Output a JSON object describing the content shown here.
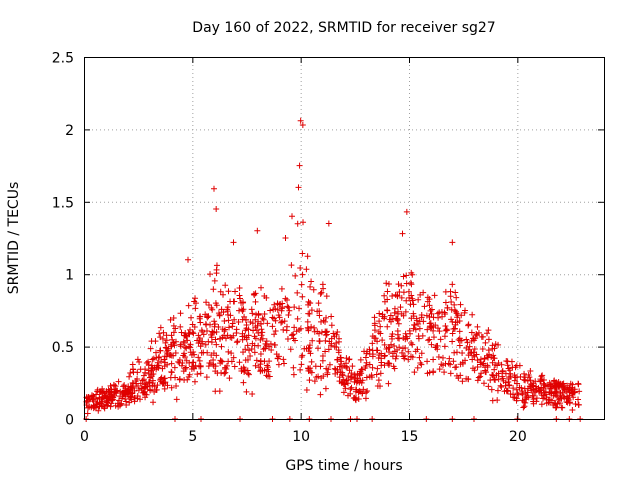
{
  "chart_data": {
    "type": "scatter",
    "title": "Day 160 of 2022, SRMTID for receiver sg27",
    "xlabel": "GPS time / hours",
    "ylabel": "SRMTID / TECUs",
    "xlim": [
      0,
      24
    ],
    "ylim": [
      0,
      2.5
    ],
    "x_ticks": [
      0,
      5,
      10,
      15,
      20
    ],
    "x_tick_labels": [
      "0",
      "5",
      "10",
      "15",
      "20"
    ],
    "y_ticks": [
      0,
      0.5,
      1,
      1.5,
      2,
      2.5
    ],
    "y_tick_labels": [
      "0",
      "0.5",
      "1",
      "1.5",
      "2",
      "2.5"
    ],
    "grid": true,
    "marker": "+",
    "color": "#e00000",
    "series": [
      {
        "name": "SRMTID",
        "envelope_hours": [
          0,
          0.5,
          1,
          1.5,
          2,
          2.5,
          3,
          3.5,
          4,
          4.5,
          5,
          5.5,
          6,
          6.5,
          7,
          7.5,
          8,
          8.5,
          9,
          9.5,
          10,
          10.5,
          11,
          11.5,
          12,
          12.5,
          13,
          13.5,
          14,
          14.5,
          15,
          15.5,
          16,
          16.5,
          17,
          17.5,
          18,
          18.5,
          19,
          19.5,
          20,
          20.5,
          21,
          21.5,
          22,
          22.5,
          23
        ],
        "envelope_median": [
          0.1,
          0.12,
          0.14,
          0.15,
          0.17,
          0.22,
          0.28,
          0.33,
          0.38,
          0.45,
          0.52,
          0.5,
          0.55,
          0.52,
          0.58,
          0.55,
          0.5,
          0.52,
          0.56,
          0.6,
          0.65,
          0.58,
          0.5,
          0.42,
          0.3,
          0.2,
          0.3,
          0.5,
          0.62,
          0.68,
          0.72,
          0.6,
          0.55,
          0.52,
          0.55,
          0.5,
          0.42,
          0.35,
          0.3,
          0.3,
          0.22,
          0.2,
          0.18,
          0.17,
          0.18,
          0.17,
          0.17
        ],
        "envelope_max": [
          0.2,
          0.25,
          0.28,
          0.3,
          0.45,
          0.55,
          0.7,
          0.8,
          0.9,
          1.0,
          1.1,
          1.0,
          1.6,
          1.2,
          1.25,
          1.05,
          1.3,
          1.0,
          1.2,
          1.4,
          2.08,
          1.2,
          1.35,
          0.9,
          0.62,
          0.45,
          0.7,
          0.95,
          1.3,
          1.1,
          1.43,
          1.1,
          1.05,
          1.15,
          1.22,
          1.0,
          0.9,
          0.85,
          0.75,
          0.6,
          0.5,
          0.45,
          0.4,
          0.35,
          0.3,
          0.28,
          0.28
        ],
        "spikes": [
          {
            "x": 10.0,
            "y": 2.06
          },
          {
            "x": 10.1,
            "y": 2.03
          },
          {
            "x": 9.95,
            "y": 1.75
          },
          {
            "x": 9.9,
            "y": 1.6
          },
          {
            "x": 6.0,
            "y": 1.59
          },
          {
            "x": 6.1,
            "y": 1.45
          },
          {
            "x": 14.9,
            "y": 1.43
          },
          {
            "x": 9.6,
            "y": 1.4
          },
          {
            "x": 11.3,
            "y": 1.35
          },
          {
            "x": 8.0,
            "y": 1.3
          },
          {
            "x": 14.7,
            "y": 1.28
          },
          {
            "x": 6.9,
            "y": 1.22
          },
          {
            "x": 17.0,
            "y": 1.22
          },
          {
            "x": 9.3,
            "y": 1.25
          },
          {
            "x": 4.8,
            "y": 1.1
          }
        ],
        "zero_points_hours": [
          0.1,
          4.2,
          5.4,
          7.2,
          8.7,
          9.5,
          10.4,
          11.4,
          12.3,
          12.6,
          13.3,
          15.8,
          17.0,
          18.0,
          20.0,
          21.8,
          22.4,
          22.9
        ]
      }
    ]
  }
}
